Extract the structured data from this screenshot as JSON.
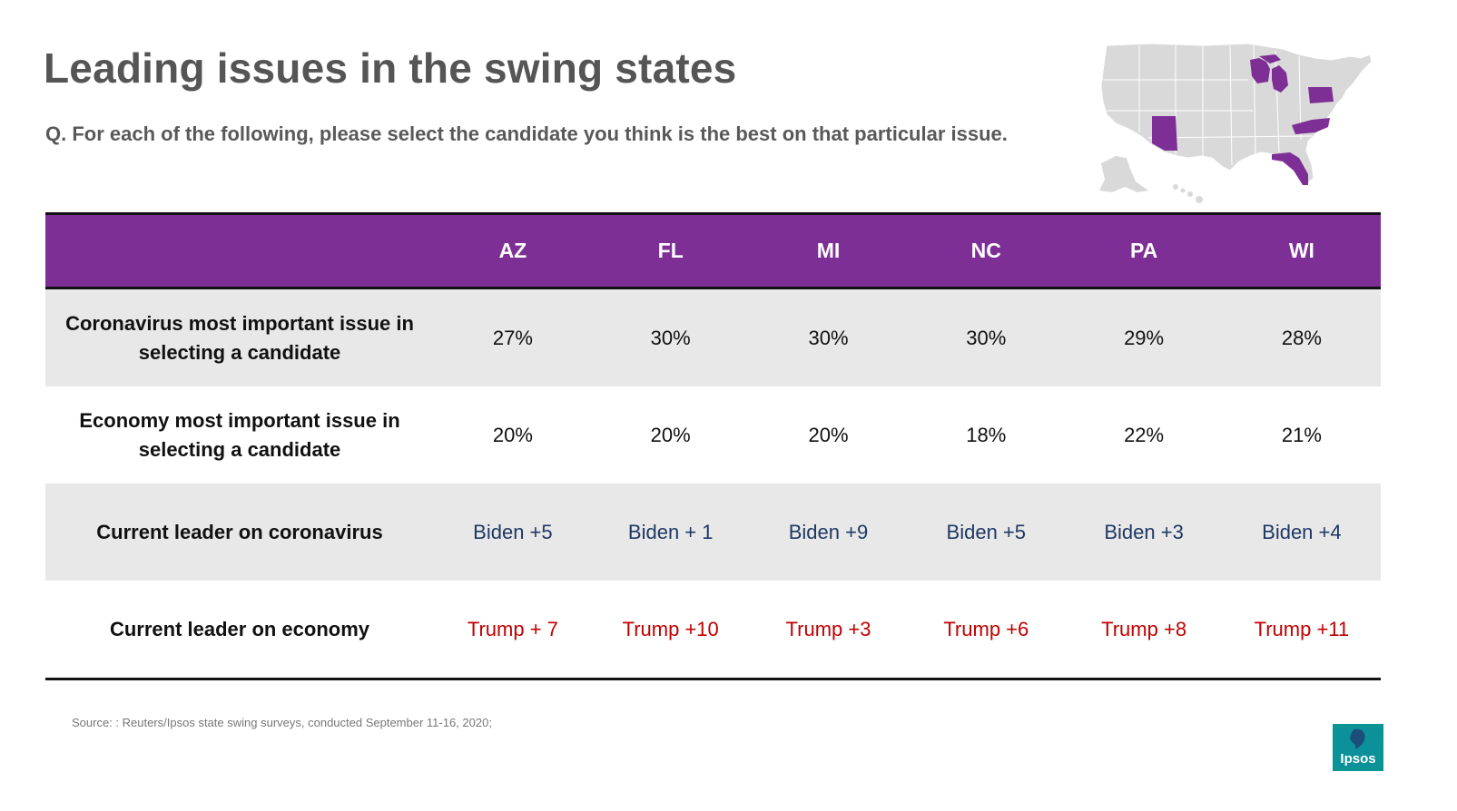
{
  "title": "Leading issues in the swing states",
  "question": "Q. For each of the following, please select the candidate you think is the best on that particular issue.",
  "colors": {
    "header": "#7e2f96",
    "shade": "#e8e8e8",
    "biden": "#1f3864",
    "trump": "#c00000",
    "highlight_states": "#7e2f96",
    "other_states": "#d9d9d9",
    "logo": "#0a9494"
  },
  "map": {
    "highlighted": [
      "AZ",
      "FL",
      "MI",
      "NC",
      "PA",
      "WI"
    ]
  },
  "table": {
    "columns": [
      "AZ",
      "FL",
      "MI",
      "NC",
      "PA",
      "WI"
    ],
    "rows": [
      {
        "label": "Coronavirus most important issue in selecting a candidate",
        "values": [
          "27%",
          "30%",
          "30%",
          "30%",
          "29%",
          "28%"
        ]
      },
      {
        "label": "Economy most important issue in selecting a candidate",
        "values": [
          "20%",
          "20%",
          "20%",
          "18%",
          "22%",
          "21%"
        ]
      },
      {
        "label": "Current leader on coronavirus",
        "values": [
          "Biden +5",
          "Biden + 1",
          "Biden +9",
          "Biden +5",
          "Biden +3",
          "Biden +4"
        ]
      },
      {
        "label": "Current leader on economy",
        "values": [
          "Trump + 7",
          "Trump +10",
          "Trump +3",
          "Trump +6",
          "Trump +8",
          "Trump +11"
        ]
      }
    ]
  },
  "source": "Source: : Reuters/Ipsos state swing surveys, conducted September 11-16, 2020;",
  "logo": {
    "text": "Ipsos"
  }
}
